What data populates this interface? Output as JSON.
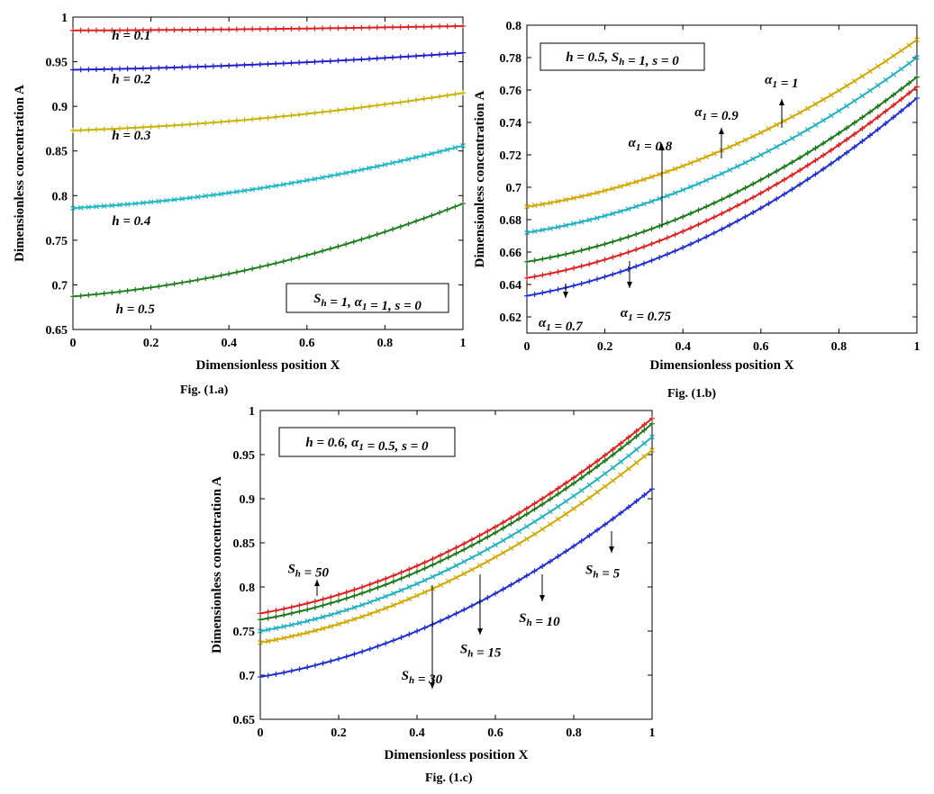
{
  "figures": [
    {
      "id": "a",
      "caption": "Fig. (1.a)"
    },
    {
      "id": "b",
      "caption": "Fig. (1.b)"
    },
    {
      "id": "c",
      "caption": "Fig. (1.c)"
    }
  ],
  "chart_data": [
    {
      "id": "a",
      "type": "line",
      "title": "",
      "xlabel": "Dimensionless position X",
      "ylabel": "Dimensionless concentration A",
      "xlim": [
        0,
        1
      ],
      "ylim": [
        0.65,
        1
      ],
      "xticks": [
        0,
        0.2,
        0.4,
        0.6,
        0.8,
        1
      ],
      "xtick_labels": [
        "0",
        "0.2",
        "0.4",
        "0.6",
        "0.8",
        "1"
      ],
      "yticks": [
        0.65,
        0.7,
        0.75,
        0.8,
        0.85,
        0.9,
        0.95,
        1
      ],
      "ytick_labels": [
        "0.65",
        "0.7",
        "0.75",
        "0.8",
        "0.85",
        "0.9",
        "0.95",
        "1"
      ],
      "legend_box": "S_h = 1, α_1 = 1, s = 0",
      "series": [
        {
          "name": "h = 0.1",
          "color": "#e02020",
          "marker": "+",
          "start": 0.985,
          "end": 0.99
        },
        {
          "name": "h = 0.2",
          "color": "#2020d0",
          "marker": "+",
          "start": 0.941,
          "end": 0.96
        },
        {
          "name": "h = 0.3",
          "color": "#c8b400",
          "marker": "+",
          "start": 0.873,
          "end": 0.915
        },
        {
          "name": "h = 0.4",
          "color": "#20b8c8",
          "marker": "x",
          "start": 0.786,
          "end": 0.856
        },
        {
          "name": "h = 0.5",
          "color": "#208020",
          "marker": "+",
          "start": 0.687,
          "end": 0.791
        }
      ],
      "annotations": [
        {
          "text": "h = 0.1",
          "x": 0.1,
          "y": 0.975
        },
        {
          "text": "h = 0.2",
          "x": 0.1,
          "y": 0.926
        },
        {
          "text": "h = 0.3",
          "x": 0.1,
          "y": 0.863
        },
        {
          "text": "h = 0.4",
          "x": 0.1,
          "y": 0.767
        },
        {
          "text": "h = 0.5",
          "x": 0.11,
          "y": 0.668
        }
      ]
    },
    {
      "id": "b",
      "type": "line",
      "title": "",
      "xlabel": "Dimensionless position X",
      "ylabel": "Dimensionless concentration A",
      "xlim": [
        0,
        1
      ],
      "ylim": [
        0.61,
        0.8
      ],
      "xticks": [
        0,
        0.2,
        0.4,
        0.6,
        0.8,
        1
      ],
      "xtick_labels": [
        "0",
        "0.2",
        "0.4",
        "0.6",
        "0.8",
        "1"
      ],
      "yticks": [
        0.62,
        0.64,
        0.66,
        0.68,
        0.7,
        0.72,
        0.74,
        0.76,
        0.78,
        0.8
      ],
      "ytick_labels": [
        "0.62",
        "0.64",
        "0.66",
        "0.68",
        "0.7",
        "0.72",
        "0.74",
        "0.76",
        "0.78",
        "0.8"
      ],
      "legend_box": "h = 0.5, S_h = 1, s = 0",
      "series": [
        {
          "name": "α_1 = 1",
          "color": "#d0a800",
          "marker": "x",
          "start": 0.688,
          "end": 0.791
        },
        {
          "name": "α_1 = 0.9",
          "color": "#20b0c0",
          "marker": "x",
          "start": 0.672,
          "end": 0.78
        },
        {
          "name": "α_1 = 0.8",
          "color": "#1a7a1a",
          "marker": "+",
          "start": 0.654,
          "end": 0.768
        },
        {
          "name": "α_1 = 0.75",
          "color": "#e02020",
          "marker": "+",
          "start": 0.644,
          "end": 0.762
        },
        {
          "name": "α_1 = 0.7",
          "color": "#2030d0",
          "marker": "+",
          "start": 0.633,
          "end": 0.755
        }
      ],
      "annotations": [
        {
          "text": "α_1 = 1",
          "x": 0.61,
          "y": 0.764
        },
        {
          "text": "α_1 = 0.9",
          "x": 0.43,
          "y": 0.744
        },
        {
          "text": "α_1 = 0.8",
          "x": 0.26,
          "y": 0.725
        },
        {
          "text": "α_1 = 0.75",
          "x": 0.24,
          "y": 0.62
        },
        {
          "text": "α_1 = 0.7",
          "x": 0.03,
          "y": 0.614
        }
      ]
    },
    {
      "id": "c",
      "type": "line",
      "title": "",
      "xlabel": "Dimensionless position X",
      "ylabel": "Dimensionless concentration A",
      "xlim": [
        0,
        1
      ],
      "ylim": [
        0.65,
        1
      ],
      "xticks": [
        0,
        0.2,
        0.4,
        0.6,
        0.8,
        1
      ],
      "xtick_labels": [
        "0",
        "0.2",
        "0.4",
        "0.6",
        "0.8",
        "1"
      ],
      "yticks": [
        0.65,
        0.7,
        0.75,
        0.8,
        0.85,
        0.9,
        0.95,
        1
      ],
      "ytick_labels": [
        "0.65",
        "0.7",
        "0.75",
        "0.8",
        "0.85",
        "0.9",
        "0.95",
        "1"
      ],
      "legend_box": "h = 0.6, α_1 = 0.5, s = 0",
      "series": [
        {
          "name": "S_h = 50",
          "color": "#e02020",
          "marker": "+",
          "start": 0.77,
          "end": 0.991
        },
        {
          "name": "S_h = 30",
          "color": "#1a7a1a",
          "marker": "+",
          "start": 0.763,
          "end": 0.985
        },
        {
          "name": "S_h = 15",
          "color": "#20b0c0",
          "marker": "x",
          "start": 0.75,
          "end": 0.97
        },
        {
          "name": "S_h = 10",
          "color": "#d0a800",
          "marker": "x",
          "start": 0.737,
          "end": 0.955
        },
        {
          "name": "S_h = 5",
          "color": "#2030d0",
          "marker": "+",
          "start": 0.698,
          "end": 0.911
        }
      ],
      "annotations": [
        {
          "text": "S_h = 50",
          "x": 0.07,
          "y": 0.816
        },
        {
          "text": "S_h = 30",
          "x": 0.36,
          "y": 0.695
        },
        {
          "text": "S_h = 15",
          "x": 0.51,
          "y": 0.725
        },
        {
          "text": "S_h = 10",
          "x": 0.66,
          "y": 0.76
        },
        {
          "text": "S_h = 5",
          "x": 0.83,
          "y": 0.815
        }
      ]
    }
  ]
}
